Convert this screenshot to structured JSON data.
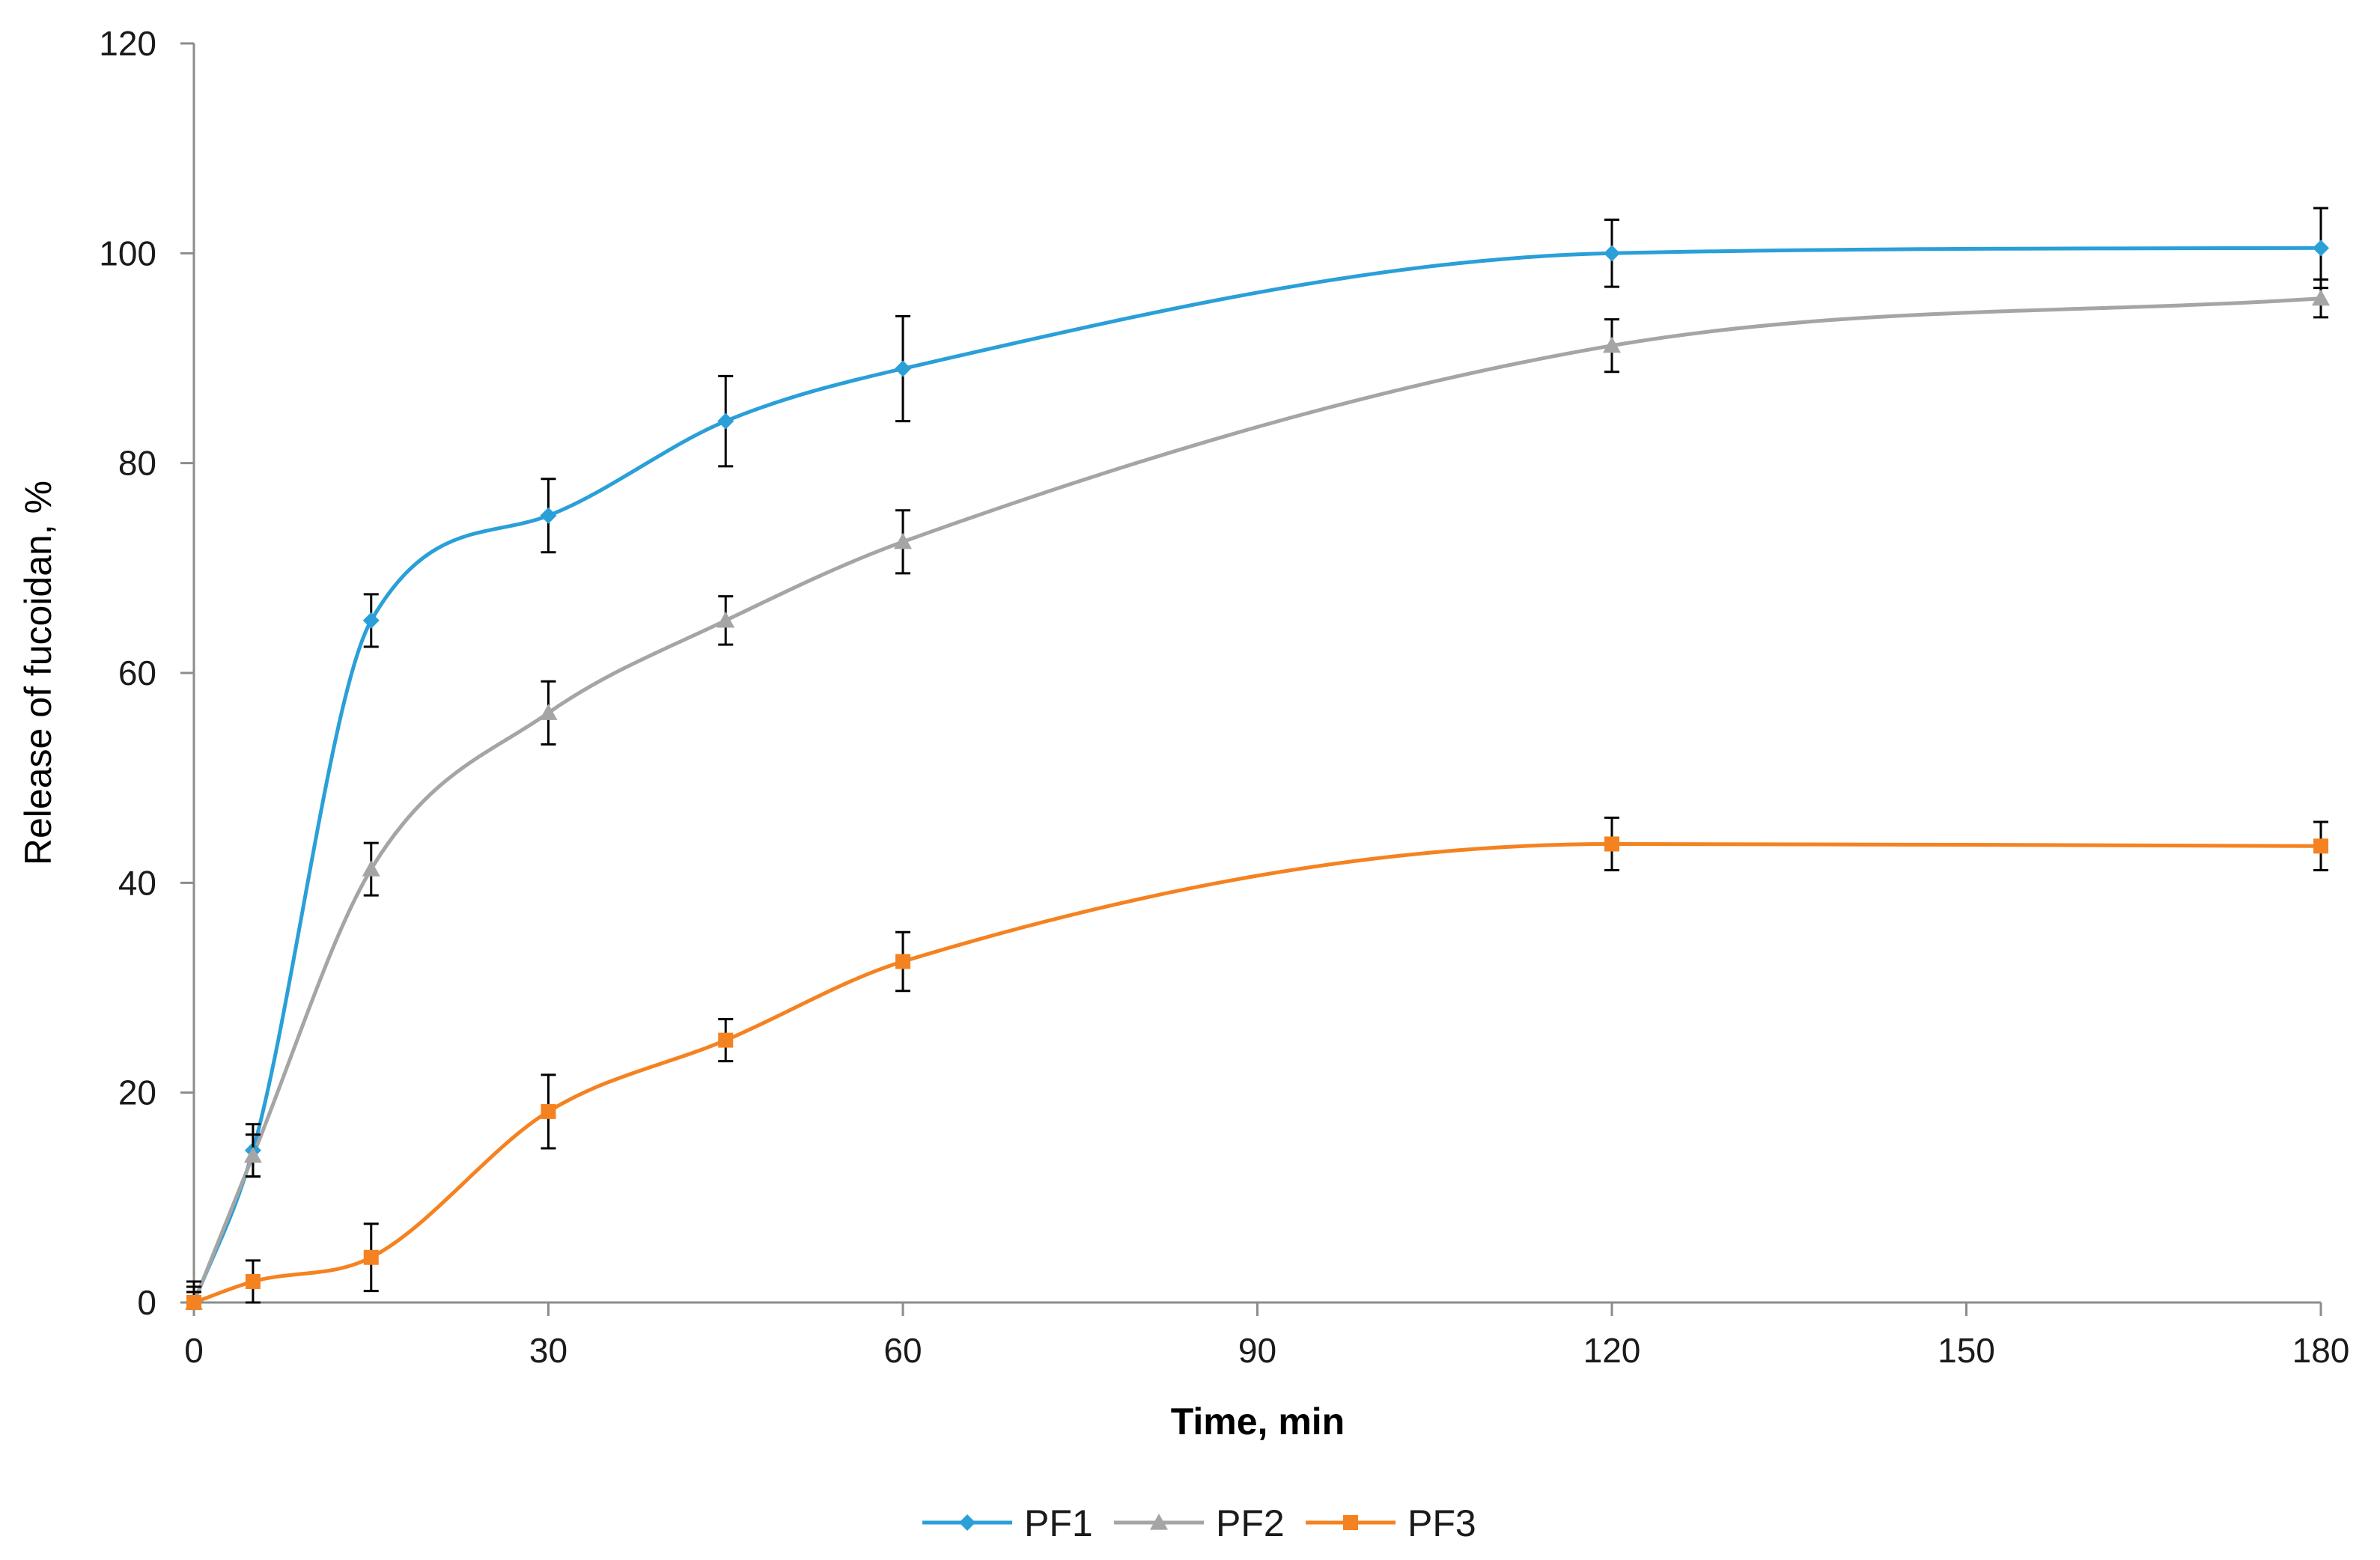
{
  "chart_data": {
    "type": "line",
    "title": "",
    "xlabel": "Time, min",
    "ylabel": "Release of fucoidan, %",
    "xlim": [
      0,
      180
    ],
    "ylim": [
      0,
      120
    ],
    "xticks": [
      0,
      30,
      60,
      90,
      120,
      150,
      180
    ],
    "yticks": [
      0,
      20,
      40,
      60,
      80,
      100,
      120
    ],
    "grid": false,
    "legend_position": "bottom-center",
    "x": [
      0,
      5,
      15,
      30,
      45,
      60,
      120,
      180
    ],
    "series": [
      {
        "name": "PF1",
        "color": "#2a9fd8",
        "marker": "diamond",
        "values": [
          0,
          14.5,
          65,
          75,
          84,
          89,
          100,
          100.5
        ],
        "errors": [
          2,
          2.5,
          2.5,
          3.5,
          4.3,
          5,
          3.2,
          3.8
        ]
      },
      {
        "name": "PF2",
        "color": "#a5a5a5",
        "marker": "triangle",
        "values": [
          0,
          14,
          41.3,
          56.2,
          65,
          72.5,
          91.2,
          95.7
        ],
        "errors": [
          1.5,
          2,
          2.5,
          3,
          2.3,
          3,
          2.5,
          1.8
        ]
      },
      {
        "name": "PF3",
        "color": "#f58220",
        "marker": "square",
        "values": [
          0,
          2,
          4.3,
          18.2,
          25,
          32.5,
          43.7,
          43.5
        ],
        "errors": [
          1,
          2,
          3.2,
          3.5,
          2,
          2.8,
          2.5,
          2.3
        ]
      }
    ]
  }
}
